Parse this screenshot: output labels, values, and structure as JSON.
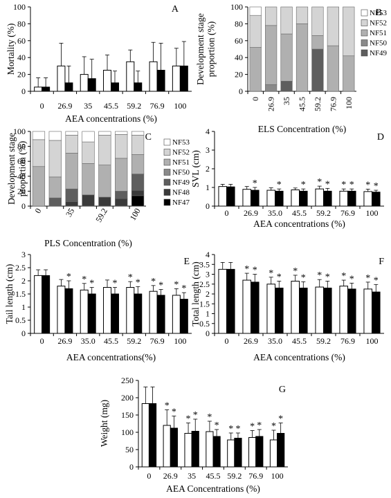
{
  "chart_data": [
    {
      "id": "A",
      "panel_label": "A",
      "type": "bar",
      "xlabel": "AEA concentrations (%)",
      "ylabel": "Mortality (%)",
      "ylim": [
        0,
        100
      ],
      "yticks": [
        "0",
        "20",
        "40",
        "60",
        "80",
        "100"
      ],
      "categories": [
        "0",
        "26.9",
        "35",
        "45.5",
        "59.2",
        "76.9",
        "100"
      ],
      "series": [
        {
          "fill": "#ffffff",
          "values": [
            5,
            30,
            20,
            25,
            35,
            35,
            30
          ],
          "errors": [
            11,
            27,
            21,
            18,
            14,
            23,
            21
          ]
        },
        {
          "fill": "#000000",
          "values": [
            5,
            10,
            15,
            10,
            10,
            25,
            30
          ],
          "errors": [
            11,
            20,
            23,
            14,
            14,
            32,
            29
          ]
        }
      ]
    },
    {
      "id": "B",
      "panel_label": "B",
      "type": "bar",
      "stacked": true,
      "xlabel": "ELS Concentration (%)",
      "ylabel": "Development stage proportion (%)",
      "ylim": [
        0,
        100
      ],
      "yticks": [
        "0",
        "20",
        "40",
        "60",
        "80",
        "100"
      ],
      "categories": [
        "0",
        "26.9",
        "35",
        "45.5",
        "59.2",
        "76.9",
        "100"
      ],
      "legend": [
        "NF53",
        "NF52",
        "NF51",
        "NF50",
        "NF49"
      ],
      "legend_position": "right",
      "stage_colors": [
        "#ffffff",
        "#d4d4d4",
        "#b0b0b0",
        "#8a8a8a",
        "#5e5e5e"
      ],
      "stacks": [
        [
          10,
          38,
          52,
          0,
          0
        ],
        [
          0,
          22,
          70,
          8,
          0
        ],
        [
          0,
          32,
          56,
          0,
          12
        ],
        [
          0,
          20,
          80,
          0,
          0
        ],
        [
          0,
          34,
          16,
          0,
          50
        ],
        [
          0,
          46,
          54,
          0,
          0
        ],
        [
          0,
          58,
          42,
          0,
          0
        ]
      ]
    },
    {
      "id": "C",
      "panel_label": "C",
      "type": "bar",
      "stacked": true,
      "xlabel": "PLS Concentration (%)",
      "ylabel": "Development stage proportion (%)",
      "ylim": [
        0,
        100
      ],
      "yticks": [
        "0",
        "20",
        "40",
        "60",
        "80",
        "100"
      ],
      "categories": [
        "0",
        "",
        "35",
        "",
        "59.2",
        "",
        "100"
      ],
      "legend": [
        "NF53",
        "NF52",
        "NF51",
        "NF50",
        "NF49",
        "NF48",
        "NF47"
      ],
      "legend_position": "right",
      "stage_colors": [
        "#ffffff",
        "#d4d4d4",
        "#b0b0b0",
        "#8a8a8a",
        "#5e5e5e",
        "#3a3a3a",
        "#000000"
      ],
      "stacks": [
        [
          11,
          36,
          53,
          0,
          0,
          0,
          0
        ],
        [
          12,
          49,
          28,
          0,
          11,
          0,
          0
        ],
        [
          5,
          24,
          48,
          0,
          17,
          6,
          0
        ],
        [
          14,
          29,
          42,
          0,
          0,
          15,
          0
        ],
        [
          5,
          40,
          43,
          0,
          0,
          12,
          0
        ],
        [
          4,
          32,
          44,
          0,
          10,
          10,
          0
        ],
        [
          5,
          26,
          26,
          0,
          22,
          7,
          14
        ]
      ]
    },
    {
      "id": "D",
      "panel_label": "D",
      "type": "bar",
      "xlabel": "AEA concentrations (%)",
      "ylabel": "SVL (cm)",
      "ylim": [
        0,
        4
      ],
      "yticks": [
        "0",
        "1",
        "2",
        "3",
        "4"
      ],
      "categories": [
        "0",
        "26.9",
        "35.0",
        "45.5",
        "59.2",
        "76.9",
        "100"
      ],
      "series": [
        {
          "fill": "#ffffff",
          "values": [
            1.05,
            0.9,
            0.85,
            0.87,
            0.92,
            0.8,
            0.78
          ],
          "errors": [
            0.12,
            0.15,
            0.13,
            0.1,
            0.15,
            0.12,
            0.13
          ],
          "stars": [
            false,
            false,
            false,
            false,
            true,
            true,
            true
          ]
        },
        {
          "fill": "#000000",
          "values": [
            1.03,
            0.85,
            0.8,
            0.8,
            0.8,
            0.8,
            0.75
          ],
          "errors": [
            0.14,
            0.15,
            0.12,
            0.12,
            0.15,
            0.12,
            0.1
          ],
          "stars": [
            false,
            true,
            true,
            true,
            true,
            true,
            true
          ]
        }
      ]
    },
    {
      "id": "E",
      "panel_label": "E",
      "type": "bar",
      "xlabel": "AEA concentrations(%)",
      "ylabel": "Tail length (cm)",
      "ylim": [
        0,
        3
      ],
      "yticks": [
        "0",
        "0.5",
        "1",
        "1.5",
        "2",
        "2.5",
        "3"
      ],
      "categories": [
        "0",
        "26.9",
        "35.0",
        "45.5",
        "59.2",
        "76.9",
        "100"
      ],
      "series": [
        {
          "fill": "#ffffff",
          "values": [
            2.2,
            1.8,
            1.65,
            1.75,
            1.75,
            1.6,
            1.45
          ],
          "errors": [
            0.22,
            0.25,
            0.25,
            0.28,
            0.22,
            0.22,
            0.25
          ],
          "stars": [
            false,
            false,
            true,
            false,
            true,
            true,
            true
          ]
        },
        {
          "fill": "#000000",
          "values": [
            2.2,
            1.7,
            1.5,
            1.5,
            1.5,
            1.45,
            1.3
          ],
          "errors": [
            0.22,
            0.3,
            0.25,
            0.25,
            0.28,
            0.22,
            0.25
          ],
          "stars": [
            false,
            true,
            true,
            true,
            true,
            true,
            true
          ]
        }
      ]
    },
    {
      "id": "F",
      "panel_label": "F",
      "type": "bar",
      "xlabel": "AEA concentrations (%)",
      "ylabel": "Total length (cm)",
      "ylim": [
        0,
        4
      ],
      "yticks": [
        "0",
        "0.5",
        "1",
        "1.5",
        "2",
        "2.5",
        "3",
        "3.5",
        "4"
      ],
      "categories": [
        "0",
        "26.9",
        "35.0",
        "45.5",
        "59.2",
        "76.9",
        "100"
      ],
      "series": [
        {
          "fill": "#ffffff",
          "values": [
            3.25,
            2.7,
            2.5,
            2.65,
            2.35,
            2.4,
            2.25
          ],
          "errors": [
            0.35,
            0.35,
            0.35,
            0.3,
            0.38,
            0.3,
            0.35
          ],
          "stars": [
            false,
            true,
            true,
            true,
            true,
            true,
            true
          ]
        },
        {
          "fill": "#000000",
          "values": [
            3.25,
            2.6,
            2.3,
            2.3,
            2.3,
            2.25,
            2.1
          ],
          "errors": [
            0.35,
            0.4,
            0.35,
            0.32,
            0.35,
            0.3,
            0.38
          ],
          "stars": [
            false,
            true,
            true,
            true,
            true,
            true,
            true
          ]
        }
      ]
    },
    {
      "id": "G",
      "panel_label": "G",
      "type": "bar",
      "xlabel": "AEA Concentrations (%)",
      "ylabel": "Weight (mg)",
      "ylim": [
        0,
        250
      ],
      "yticks": [
        "0",
        "50",
        "100",
        "150",
        "200",
        "250"
      ],
      "categories": [
        "0",
        "26.9",
        "35",
        "45.5",
        "59.2",
        "76.9",
        "100"
      ],
      "series": [
        {
          "fill": "#ffffff",
          "values": [
            183,
            120,
            97,
            102,
            78,
            85,
            78
          ],
          "errors": [
            48,
            45,
            30,
            30,
            20,
            20,
            28
          ],
          "stars": [
            false,
            true,
            true,
            true,
            true,
            true,
            true
          ]
        },
        {
          "fill": "#000000",
          "values": [
            183,
            112,
            103,
            88,
            83,
            88,
            97
          ],
          "errors": [
            48,
            35,
            35,
            20,
            15,
            20,
            30
          ],
          "stars": [
            false,
            true,
            true,
            true,
            true,
            true,
            true
          ]
        }
      ]
    }
  ]
}
